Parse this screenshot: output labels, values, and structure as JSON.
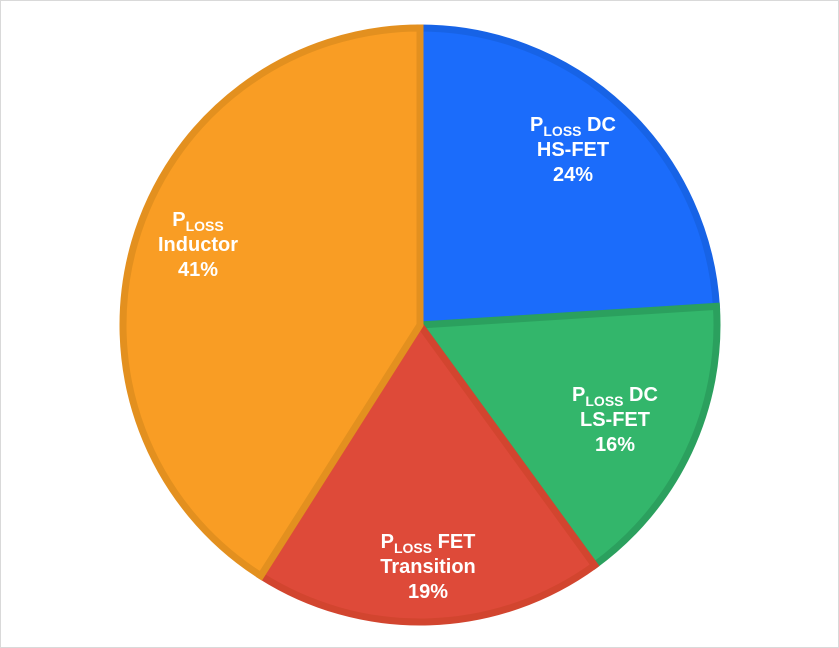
{
  "chart_data": {
    "type": "pie",
    "title": "",
    "start": "top",
    "direction": "clockwise",
    "slices": [
      {
        "prefix": "P",
        "subscript": "LOSS",
        "line1": "DC",
        "line2": "HS-FET",
        "percent_label": "24%",
        "value": 24,
        "color": "#1b6cfb",
        "border": "#1763e6"
      },
      {
        "prefix": "P",
        "subscript": "LOSS",
        "line1": "DC",
        "line2": "LS-FET",
        "percent_label": "16%",
        "value": 16,
        "color": "#33b66b",
        "border": "#2ba05e"
      },
      {
        "prefix": "P",
        "subscript": "LOSS",
        "line1": "FET",
        "line2": "Transition",
        "percent_label": "19%",
        "value": 19,
        "color": "#de4a39",
        "border": "#d2452f"
      },
      {
        "prefix": "P",
        "subscript": "LOSS",
        "line1": "",
        "line2": "Inductor",
        "percent_label": "41%",
        "value": 41,
        "color": "#f99d24",
        "border": "#e3901f"
      }
    ]
  }
}
